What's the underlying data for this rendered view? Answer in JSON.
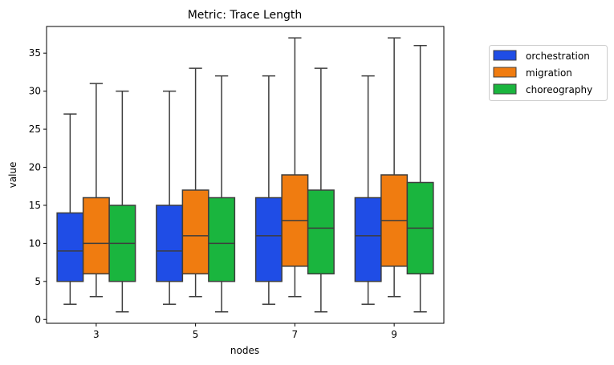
{
  "chart_data": {
    "type": "box",
    "title": "Metric: Trace Length",
    "xlabel": "nodes",
    "ylabel": "value",
    "categories": [
      "3",
      "5",
      "7",
      "9"
    ],
    "ylim": [
      -0.5,
      38.5
    ],
    "yticks": [
      0,
      5,
      10,
      15,
      20,
      25,
      30,
      35
    ],
    "grid": false,
    "legend_position": "outside-right",
    "series": [
      {
        "name": "orchestration",
        "color": "#1f4de6",
        "boxes": [
          {
            "min": 2,
            "q1": 5,
            "median": 9,
            "q3": 14,
            "max": 27
          },
          {
            "min": 2,
            "q1": 5,
            "median": 9,
            "q3": 15,
            "max": 30
          },
          {
            "min": 2,
            "q1": 5,
            "median": 11,
            "q3": 16,
            "max": 32
          },
          {
            "min": 2,
            "q1": 5,
            "median": 11,
            "q3": 16,
            "max": 32
          }
        ]
      },
      {
        "name": "migration",
        "color": "#f07c10",
        "boxes": [
          {
            "min": 3,
            "q1": 6,
            "median": 10,
            "q3": 16,
            "max": 31
          },
          {
            "min": 3,
            "q1": 6,
            "median": 11,
            "q3": 17,
            "max": 33
          },
          {
            "min": 3,
            "q1": 7,
            "median": 13,
            "q3": 19,
            "max": 37
          },
          {
            "min": 3,
            "q1": 7,
            "median": 13,
            "q3": 19,
            "max": 37
          }
        ]
      },
      {
        "name": "choreography",
        "color": "#1ab53e",
        "boxes": [
          {
            "min": 1,
            "q1": 5,
            "median": 10,
            "q3": 15,
            "max": 30
          },
          {
            "min": 1,
            "q1": 5,
            "median": 10,
            "q3": 16,
            "max": 32
          },
          {
            "min": 1,
            "q1": 6,
            "median": 12,
            "q3": 17,
            "max": 33
          },
          {
            "min": 1,
            "q1": 6,
            "median": 12,
            "q3": 18,
            "max": 36
          }
        ]
      }
    ]
  }
}
